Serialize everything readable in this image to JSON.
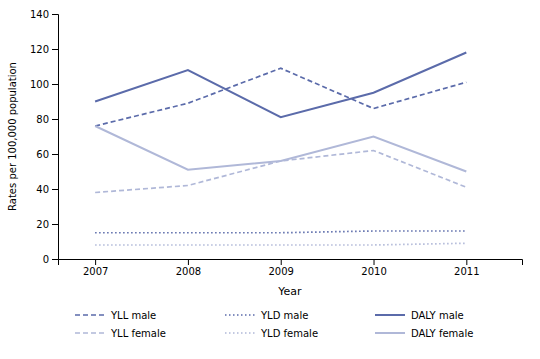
{
  "chart_data": {
    "type": "line",
    "x": [
      2007,
      2008,
      2009,
      2010,
      2011
    ],
    "series": [
      {
        "name": "YLL male",
        "color": "#5b6baa",
        "line_style": "dashed",
        "values": [
          76,
          89,
          109,
          86,
          101
        ]
      },
      {
        "name": "YLL female",
        "color": "#b0b8d8",
        "line_style": "dashed",
        "values": [
          38,
          42,
          56,
          62,
          41
        ]
      },
      {
        "name": "YLD male",
        "color": "#5b6baa",
        "line_style": "dotted",
        "values": [
          15,
          15,
          15,
          16,
          16
        ]
      },
      {
        "name": "YLD female",
        "color": "#b0b8d8",
        "line_style": "dotted",
        "values": [
          8,
          8,
          8,
          8,
          9
        ]
      },
      {
        "name": "DALY male",
        "color": "#5b6baa",
        "line_style": "solid",
        "values": [
          90,
          108,
          81,
          95,
          118
        ]
      },
      {
        "name": "DALY female",
        "color": "#b0b8d8",
        "line_style": "solid",
        "values": [
          76,
          51,
          56,
          70,
          50
        ]
      }
    ],
    "xlim": [
      2006.6,
      2011.6
    ],
    "xticks": [
      2007,
      2008,
      2009,
      2010,
      2011
    ],
    "ylim": [
      0,
      140
    ],
    "yticks": [
      0,
      20,
      40,
      60,
      80,
      100,
      120,
      140
    ],
    "x_label": "Year",
    "y_label": "Rates per 100,000 population",
    "grid": false,
    "legend": "bottom"
  }
}
